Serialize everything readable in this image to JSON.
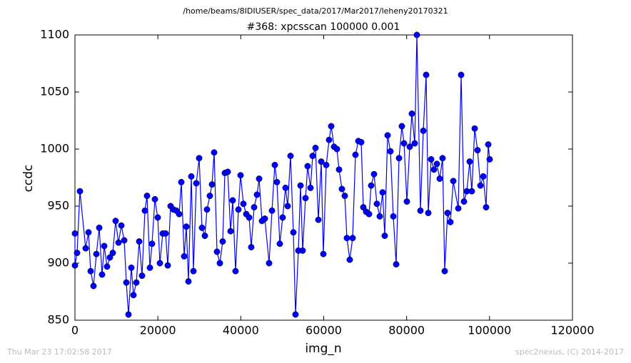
{
  "chart_data": {
    "type": "line",
    "suptitle": "/home/beams/8IDIUSER/spec_data/2017/Mar2017/leheny20170321",
    "title": "#368: xpcsscan 100000 0.001",
    "x_label": "img_n",
    "y_label": "ccdc",
    "footer_left": "Thu Mar 23 17:02:58 2017",
    "footer_right": "spec2nexus, (C) 2014-2017",
    "xlim": [
      0,
      120000
    ],
    "xticks": [
      0,
      20000,
      40000,
      60000,
      80000,
      100000,
      120000
    ],
    "ylim": [
      850,
      1100
    ],
    "yticks": [
      850,
      900,
      950,
      1000,
      1050,
      1100
    ],
    "marker": "circle",
    "series": [
      {
        "color": "#0000ff",
        "x": [
          0,
          0,
          517,
          1205,
          2583,
          3271,
          3788,
          4476,
          5165,
          5854,
          6542,
          7059,
          7748,
          8436,
          9125,
          9814,
          10502,
          11191,
          11880,
          12396,
          12913,
          13601,
          14118,
          14807,
          15495,
          16184,
          16873,
          17389,
          18078,
          18594,
          19283,
          19972,
          20488,
          21177,
          21866,
          22382,
          23071,
          23759,
          24448,
          25137,
          25653,
          26342,
          26859,
          27375,
          28064,
          28580,
          29269,
          29958,
          30646,
          31335,
          31851,
          32540,
          33057,
          33573,
          34262,
          34951,
          35639,
          36156,
          36844,
          37533,
          38050,
          38738,
          39427,
          39943,
          40632,
          41321,
          42009,
          42526,
          43215,
          43903,
          44420,
          45109,
          45797,
          46830,
          47519,
          48208,
          48724,
          49413,
          50101,
          50790,
          51307,
          51995,
          52684,
          53201,
          53889,
          54406,
          54922,
          55611,
          56127,
          56816,
          57333,
          58021,
          58710,
          59399,
          59915,
          60604,
          61293,
          61809,
          62498,
          63186,
          63703,
          64392,
          65080,
          65597,
          66285,
          66974,
          67663,
          68351,
          69040,
          69557,
          70245,
          70934,
          71451,
          72139,
          72828,
          73517,
          74205,
          74722,
          75410,
          76099,
          76788,
          77476,
          78165,
          78854,
          79370,
          80059,
          80748,
          81264,
          81953,
          82469,
          83330,
          84019,
          84708,
          85224,
          85913,
          86601,
          87290,
          87979,
          88668,
          89184,
          89873,
          90561,
          91250,
          92455,
          93144,
          93832,
          94521,
          95210,
          95726,
          96415,
          97104,
          97792,
          98481,
          99170,
          99686,
          100030
        ],
        "values": [
          926,
          898,
          909,
          963,
          913,
          927,
          893,
          880,
          908,
          931,
          890,
          915,
          897,
          905,
          909,
          937,
          918,
          933,
          920,
          883,
          855,
          896,
          872,
          883,
          919,
          889,
          946,
          959,
          896,
          917,
          956,
          940,
          900,
          926,
          926,
          898,
          950,
          947,
          946,
          943,
          971,
          906,
          932,
          884,
          976,
          893,
          970,
          992,
          931,
          924,
          947,
          959,
          969,
          997,
          910,
          900,
          919,
          979,
          980,
          928,
          955,
          893,
          947,
          977,
          952,
          943,
          940,
          914,
          949,
          960,
          974,
          937,
          939,
          900,
          946,
          986,
          971,
          917,
          940,
          966,
          950,
          994,
          927,
          855,
          911,
          968,
          911,
          957,
          985,
          966,
          994,
          1001,
          938,
          989,
          908,
          986,
          1008,
          1020,
          1002,
          1000,
          982,
          965,
          959,
          922,
          903,
          922,
          995,
          1007,
          1006,
          949,
          945,
          943,
          968,
          978,
          952,
          941,
          962,
          924,
          1012,
          998,
          941,
          899,
          992,
          1020,
          1005,
          954,
          1002,
          1031,
          1005,
          1100,
          946,
          1016,
          1065,
          944,
          991,
          982,
          987,
          974,
          992,
          893,
          944,
          936,
          972,
          948,
          1065,
          954,
          963,
          989,
          963,
          1018,
          999,
          968,
          976,
          949,
          1004,
          991
        ]
      }
    ]
  }
}
